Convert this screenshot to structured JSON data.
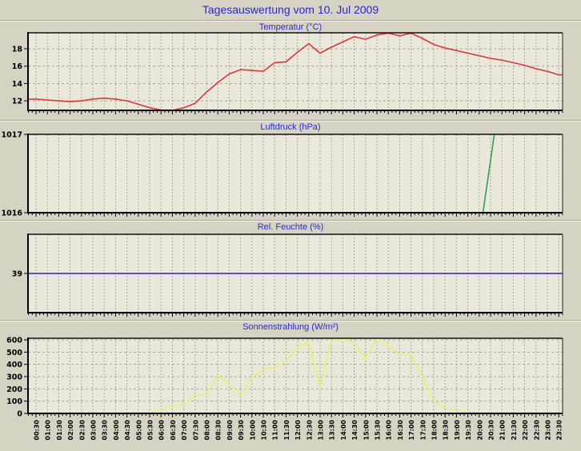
{
  "page": {
    "title": "Tagesauswertung vom 10. Jul 2009"
  },
  "colors": {
    "page_background": "#d6d2c4",
    "plot_background": "#eae8da",
    "grid": "#a6a496",
    "axis": "#000000",
    "title_blue": "#2a2ac8",
    "temperature_line": "#d83a3a",
    "pressure_line": "#2e9e53",
    "humidity_line": "#2727bb",
    "solar_line": "#ecec74"
  },
  "chart_data": {
    "type": "line",
    "layout": "4 stacked time-series panels, shared x axis 00:30-23:30 in 30-min steps, x tick labels rotated 90° on bottom panel only",
    "x_categories": [
      "00:30",
      "01:00",
      "01:30",
      "02:00",
      "02:30",
      "03:00",
      "03:30",
      "04:00",
      "04:30",
      "05:00",
      "05:30",
      "06:00",
      "06:30",
      "07:00",
      "07:30",
      "08:00",
      "08:30",
      "09:00",
      "09:30",
      "10:00",
      "10:30",
      "11:00",
      "11:30",
      "12:00",
      "12:30",
      "13:00",
      "13:30",
      "14:00",
      "14:30",
      "15:00",
      "15:30",
      "16:00",
      "16:30",
      "17:00",
      "17:30",
      "18:00",
      "18:30",
      "19:00",
      "19:30",
      "20:00",
      "20:30",
      "21:00",
      "21:30",
      "22:00",
      "22:30",
      "23:00",
      "23:30"
    ],
    "panels": [
      {
        "title": "Temperatur (°C)",
        "type": "line",
        "color": "#d83a3a",
        "ylim": [
          10.9,
          19.85
        ],
        "y_ticks": [
          12,
          14,
          16,
          18
        ],
        "grid_y": [
          12,
          14,
          16,
          18
        ],
        "values": [
          12.2,
          12.1,
          12.0,
          11.9,
          12.0,
          12.2,
          12.3,
          12.2,
          12.0,
          11.6,
          11.2,
          10.95,
          10.9,
          11.2,
          11.7,
          13.0,
          14.1,
          15.1,
          15.6,
          15.5,
          15.4,
          16.4,
          16.5,
          17.6,
          18.6,
          17.5,
          18.2,
          18.8,
          19.4,
          19.1,
          19.6,
          19.8,
          19.5,
          19.8,
          19.2,
          18.5,
          18.1,
          17.8,
          17.5,
          17.2,
          16.9,
          16.7,
          16.4,
          16.1,
          15.7,
          15.4,
          15.0
        ]
      },
      {
        "title": "Luftdruck (hPa)",
        "type": "line",
        "color": "#2e9e53",
        "ylim": [
          1016,
          1017
        ],
        "y_ticks": [
          1016,
          1017
        ],
        "grid_y": [],
        "points": [
          {
            "x": "20:10",
            "y": 1016.0
          },
          {
            "x": "20:40",
            "y": 1017.0
          }
        ],
        "note": "line only visible rising steeply from 1016 to 1017 between 20:10 and 20:40"
      },
      {
        "title": "Rel. Feuchte (%)",
        "type": "line",
        "color": "#2727bb",
        "ylim": [
          34,
          44
        ],
        "y_ticks": [
          39
        ],
        "grid_y": [],
        "constant_value": 39
      },
      {
        "title": "Sonnenstrahlung (W/m²)",
        "type": "line",
        "color": "#ecec74",
        "ylim": [
          0,
          613
        ],
        "y_ticks": [
          0,
          100,
          200,
          300,
          400,
          500,
          600
        ],
        "grid_y": [
          100,
          200,
          300,
          400,
          500,
          600
        ],
        "values": [
          0,
          0,
          0,
          0,
          0,
          0,
          0,
          0,
          0,
          0,
          10,
          30,
          55,
          80,
          150,
          155,
          310,
          240,
          150,
          290,
          360,
          375,
          430,
          530,
          585,
          215,
          595,
          605,
          580,
          450,
          608,
          560,
          480,
          480,
          300,
          110,
          45,
          25,
          12,
          5,
          0,
          0,
          0,
          0,
          0,
          0,
          0
        ]
      }
    ]
  }
}
